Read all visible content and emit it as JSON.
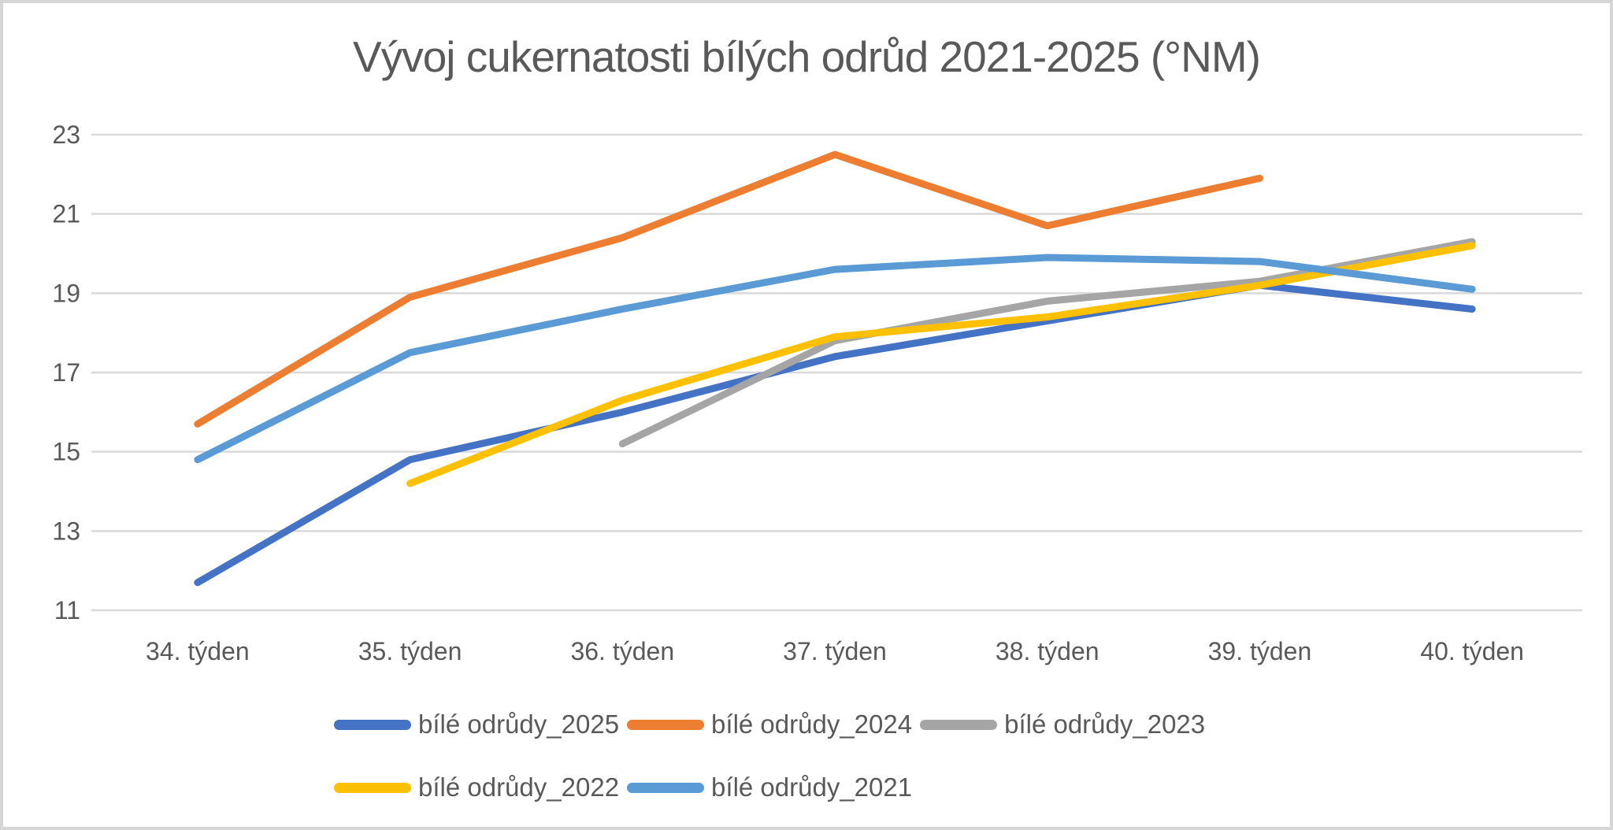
{
  "chart_data": {
    "type": "line",
    "title": "Vývoj cukernatosti bílých odrůd 2021-2025 (°NM)",
    "categories": [
      "34. týden",
      "35. týden",
      "36. týden",
      "37. týden",
      "38. týden",
      "39. týden",
      "40. týden"
    ],
    "series": [
      {
        "name": "bílé odrůdy_2025",
        "color": "#4472C4",
        "values": [
          11.7,
          14.8,
          16.0,
          17.4,
          18.3,
          19.2,
          18.6
        ]
      },
      {
        "name": "bílé odrůdy_2024",
        "color": "#ED7D31",
        "values": [
          15.7,
          18.9,
          20.4,
          22.5,
          20.7,
          21.9,
          null
        ]
      },
      {
        "name": "bílé odrůdy_2023",
        "color": "#A5A5A5",
        "values": [
          null,
          null,
          15.2,
          17.8,
          18.8,
          19.3,
          20.3
        ]
      },
      {
        "name": "bílé odrůdy_2022",
        "color": "#FFC000",
        "values": [
          null,
          14.2,
          16.3,
          17.9,
          18.4,
          19.2,
          20.2
        ]
      },
      {
        "name": "bílé odrůdy_2021",
        "color": "#5B9BD5",
        "values": [
          14.8,
          17.5,
          18.6,
          19.6,
          19.9,
          19.8,
          19.1
        ]
      }
    ],
    "xlabel": "",
    "ylabel": "",
    "ylim": [
      11,
      23
    ],
    "y_ticks": [
      23,
      21,
      19,
      17,
      15,
      13,
      11
    ],
    "grid": true,
    "gridline_color": "#D9D9D9",
    "axis_text_color": "#595959",
    "title_color": "#595959",
    "legend_position": "bottom",
    "legend_rows": [
      [
        0,
        1,
        2
      ],
      [
        3,
        4
      ]
    ]
  }
}
